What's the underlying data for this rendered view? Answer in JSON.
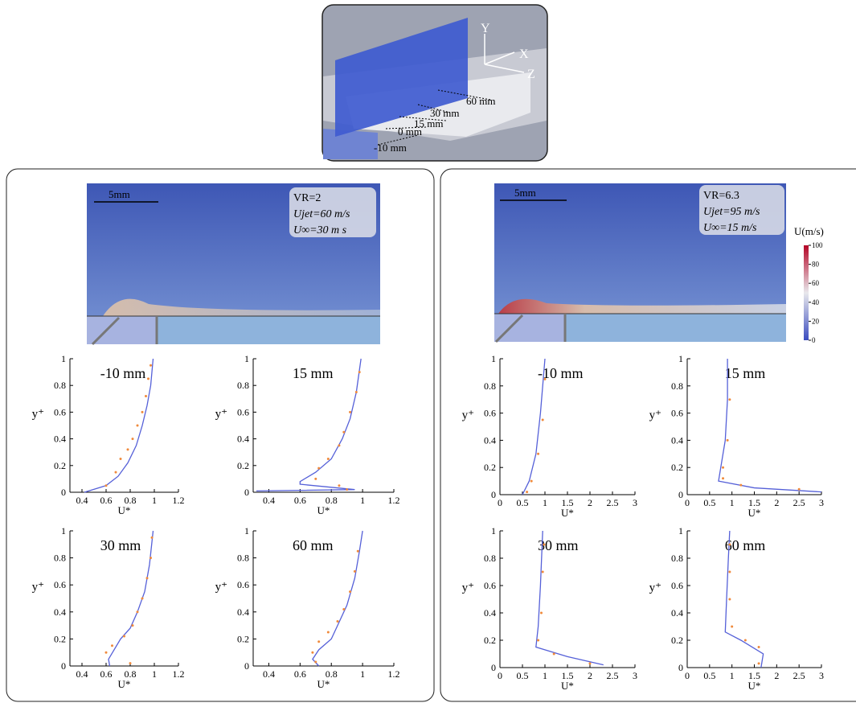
{
  "schematic": {
    "axes": [
      "Y",
      "X",
      "Z"
    ],
    "stations": [
      "60 mm",
      "30 mm",
      "15 mm",
      "0 mm",
      "-10 mm"
    ]
  },
  "contours": [
    {
      "scale": "5mm",
      "annotations": [
        "VR=2",
        "Ujet=60 m/s",
        "U∞=30 m s"
      ]
    },
    {
      "scale": "5mm",
      "annotations": [
        "VR=6.3",
        "Ujet=95 m/s",
        "U∞=15 m/s"
      ]
    }
  ],
  "colorbar": {
    "title": "U(m/s)",
    "ticks": [
      0,
      20,
      40,
      60,
      80,
      100
    ]
  },
  "chart_data": [
    {
      "type": "line",
      "title": "-10 mm",
      "x_label": "U*",
      "y_label": "y⁺",
      "xlim": [
        0.3,
        1.2
      ],
      "xticks": [
        0.4,
        0.6,
        0.8,
        1,
        1.2
      ],
      "ylim": [
        0,
        1
      ],
      "yticks": [
        0,
        0.2,
        0.4,
        0.6,
        0.8,
        1
      ],
      "series": [
        {
          "style": "line",
          "color": "#5560d8",
          "x": [
            0.42,
            0.6,
            0.7,
            0.78,
            0.85,
            0.9,
            0.94,
            0.97,
            0.99
          ],
          "values": [
            0,
            0.05,
            0.12,
            0.22,
            0.35,
            0.5,
            0.65,
            0.8,
            1
          ]
        },
        {
          "style": "markers",
          "color": "#f08a3c",
          "x": [
            0.6,
            0.68,
            0.72,
            0.78,
            0.82,
            0.86,
            0.9,
            0.93,
            0.95,
            0.97
          ],
          "values": [
            0.05,
            0.15,
            0.25,
            0.32,
            0.4,
            0.5,
            0.6,
            0.72,
            0.85,
            0.95
          ]
        }
      ]
    },
    {
      "type": "line",
      "title": "15 mm",
      "x_label": "U*",
      "y_label": "y⁺",
      "xlim": [
        0.3,
        1.2
      ],
      "xticks": [
        0.4,
        0.6,
        0.8,
        1,
        1.2
      ],
      "ylim": [
        0,
        1
      ],
      "yticks": [
        0,
        0.2,
        0.4,
        0.6,
        0.8,
        1
      ],
      "series": [
        {
          "style": "line",
          "color": "#5560d8",
          "x": [
            0.32,
            0.95,
            0.6,
            0.6,
            0.7,
            0.8,
            0.87,
            0.92,
            0.96,
            0.99
          ],
          "values": [
            0.01,
            0.02,
            0.06,
            0.08,
            0.15,
            0.25,
            0.4,
            0.55,
            0.75,
            1
          ]
        },
        {
          "style": "markers",
          "color": "#f08a3c",
          "x": [
            0.9,
            0.85,
            0.7,
            0.72,
            0.78,
            0.85,
            0.88,
            0.92,
            0.96,
            0.98
          ],
          "values": [
            0.02,
            0.05,
            0.1,
            0.18,
            0.25,
            0.35,
            0.45,
            0.6,
            0.75,
            0.9
          ]
        }
      ]
    },
    {
      "type": "line",
      "title": "30 mm",
      "x_label": "U*",
      "y_label": "y⁺",
      "xlim": [
        0.3,
        1.2
      ],
      "xticks": [
        0.4,
        0.6,
        0.8,
        1,
        1.2
      ],
      "ylim": [
        0,
        1
      ],
      "yticks": [
        0,
        0.2,
        0.4,
        0.6,
        0.8,
        1
      ],
      "series": [
        {
          "style": "line",
          "color": "#5560d8",
          "x": [
            0.63,
            0.62,
            0.72,
            0.8,
            0.86,
            0.92,
            0.96,
            0.99
          ],
          "values": [
            0,
            0.05,
            0.2,
            0.28,
            0.4,
            0.55,
            0.75,
            1
          ]
        },
        {
          "style": "markers",
          "color": "#f08a3c",
          "x": [
            0.8,
            0.6,
            0.65,
            0.75,
            0.82,
            0.86,
            0.9,
            0.94,
            0.97,
            0.98
          ],
          "values": [
            0.02,
            0.1,
            0.15,
            0.22,
            0.3,
            0.4,
            0.5,
            0.65,
            0.8,
            0.95
          ]
        }
      ]
    },
    {
      "type": "line",
      "title": "60 mm",
      "x_label": "U*",
      "y_label": "y⁺",
      "xlim": [
        0.3,
        1.2
      ],
      "xticks": [
        0.4,
        0.6,
        0.8,
        1,
        1.2
      ],
      "ylim": [
        0,
        1
      ],
      "yticks": [
        0,
        0.2,
        0.4,
        0.6,
        0.8,
        1
      ],
      "series": [
        {
          "style": "line",
          "color": "#5560d8",
          "x": [
            0.72,
            0.68,
            0.72,
            0.8,
            0.84,
            0.9,
            0.95,
            0.98,
            1
          ],
          "values": [
            0,
            0.05,
            0.12,
            0.2,
            0.3,
            0.45,
            0.65,
            0.85,
            1
          ]
        },
        {
          "style": "markers",
          "color": "#f08a3c",
          "x": [
            0.7,
            0.68,
            0.72,
            0.78,
            0.84,
            0.88,
            0.92,
            0.95,
            0.97
          ],
          "values": [
            0.03,
            0.1,
            0.18,
            0.25,
            0.33,
            0.42,
            0.55,
            0.7,
            0.85
          ]
        }
      ]
    },
    {
      "type": "line",
      "title": "-10 mm",
      "x_label": "U*",
      "y_label": "y⁺",
      "xlim": [
        0,
        3
      ],
      "xticks": [
        0,
        0.5,
        1,
        1.5,
        2,
        2.5,
        3
      ],
      "ylim": [
        0,
        1
      ],
      "yticks": [
        0,
        0.2,
        0.4,
        0.6,
        0.8,
        1
      ],
      "series": [
        {
          "style": "line",
          "color": "#5560d8",
          "x": [
            0.5,
            0.65,
            0.8,
            0.9,
            1
          ],
          "values": [
            0,
            0.1,
            0.3,
            0.6,
            1
          ]
        },
        {
          "style": "markers",
          "color": "#f08a3c",
          "x": [
            0.6,
            0.7,
            0.85,
            0.95,
            1
          ],
          "values": [
            0.02,
            0.1,
            0.3,
            0.55,
            0.85
          ]
        }
      ]
    },
    {
      "type": "line",
      "title": "15 mm",
      "x_label": "U*",
      "y_label": "y⁺",
      "xlim": [
        0,
        3
      ],
      "xticks": [
        0,
        0.5,
        1,
        1.5,
        2,
        2.5,
        3
      ],
      "ylim": [
        0,
        1
      ],
      "yticks": [
        0,
        0.2,
        0.4,
        0.6,
        0.8,
        1
      ],
      "series": [
        {
          "style": "line",
          "color": "#5560d8",
          "x": [
            3,
            1.5,
            0.7,
            0.75,
            0.85,
            0.9,
            0.9
          ],
          "values": [
            0.02,
            0.05,
            0.1,
            0.2,
            0.4,
            0.7,
            1
          ]
        },
        {
          "style": "markers",
          "color": "#f08a3c",
          "x": [
            2.5,
            1.2,
            0.8,
            0.8,
            0.9,
            0.95
          ],
          "values": [
            0.04,
            0.07,
            0.12,
            0.2,
            0.4,
            0.7
          ]
        }
      ]
    },
    {
      "type": "line",
      "title": "30 mm",
      "x_label": "U*",
      "y_label": "y⁺",
      "xlim": [
        0,
        3
      ],
      "xticks": [
        0,
        0.5,
        1,
        1.5,
        2,
        2.5,
        3
      ],
      "ylim": [
        0,
        1
      ],
      "yticks": [
        0,
        0.2,
        0.4,
        0.6,
        0.8,
        1
      ],
      "series": [
        {
          "style": "line",
          "color": "#5560d8",
          "x": [
            2.3,
            1.5,
            0.8,
            0.85,
            0.9,
            0.95
          ],
          "values": [
            0.02,
            0.08,
            0.15,
            0.3,
            0.6,
            1
          ]
        },
        {
          "style": "markers",
          "color": "#f08a3c",
          "x": [
            2,
            1.2,
            0.85,
            0.92,
            0.95,
            0.98
          ],
          "values": [
            0.03,
            0.1,
            0.2,
            0.4,
            0.7,
            0.9
          ]
        }
      ]
    },
    {
      "type": "line",
      "title": "60 mm",
      "x_label": "U*",
      "y_label": "y⁺",
      "xlim": [
        0,
        3
      ],
      "xticks": [
        0,
        0.5,
        1,
        1.5,
        2,
        2.5,
        3
      ],
      "ylim": [
        0,
        1
      ],
      "yticks": [
        0,
        0.2,
        0.4,
        0.6,
        0.8,
        1
      ],
      "series": [
        {
          "style": "line",
          "color": "#5560d8",
          "x": [
            1.65,
            1.7,
            1.2,
            0.85,
            0.88,
            0.92,
            0.95
          ],
          "values": [
            0,
            0.1,
            0.2,
            0.26,
            0.5,
            0.8,
            1
          ]
        },
        {
          "style": "markers",
          "color": "#f08a3c",
          "x": [
            1.6,
            1.6,
            1.3,
            1,
            0.95,
            0.95,
            0.95
          ],
          "values": [
            0.03,
            0.15,
            0.2,
            0.3,
            0.5,
            0.7,
            0.9
          ]
        }
      ]
    }
  ]
}
